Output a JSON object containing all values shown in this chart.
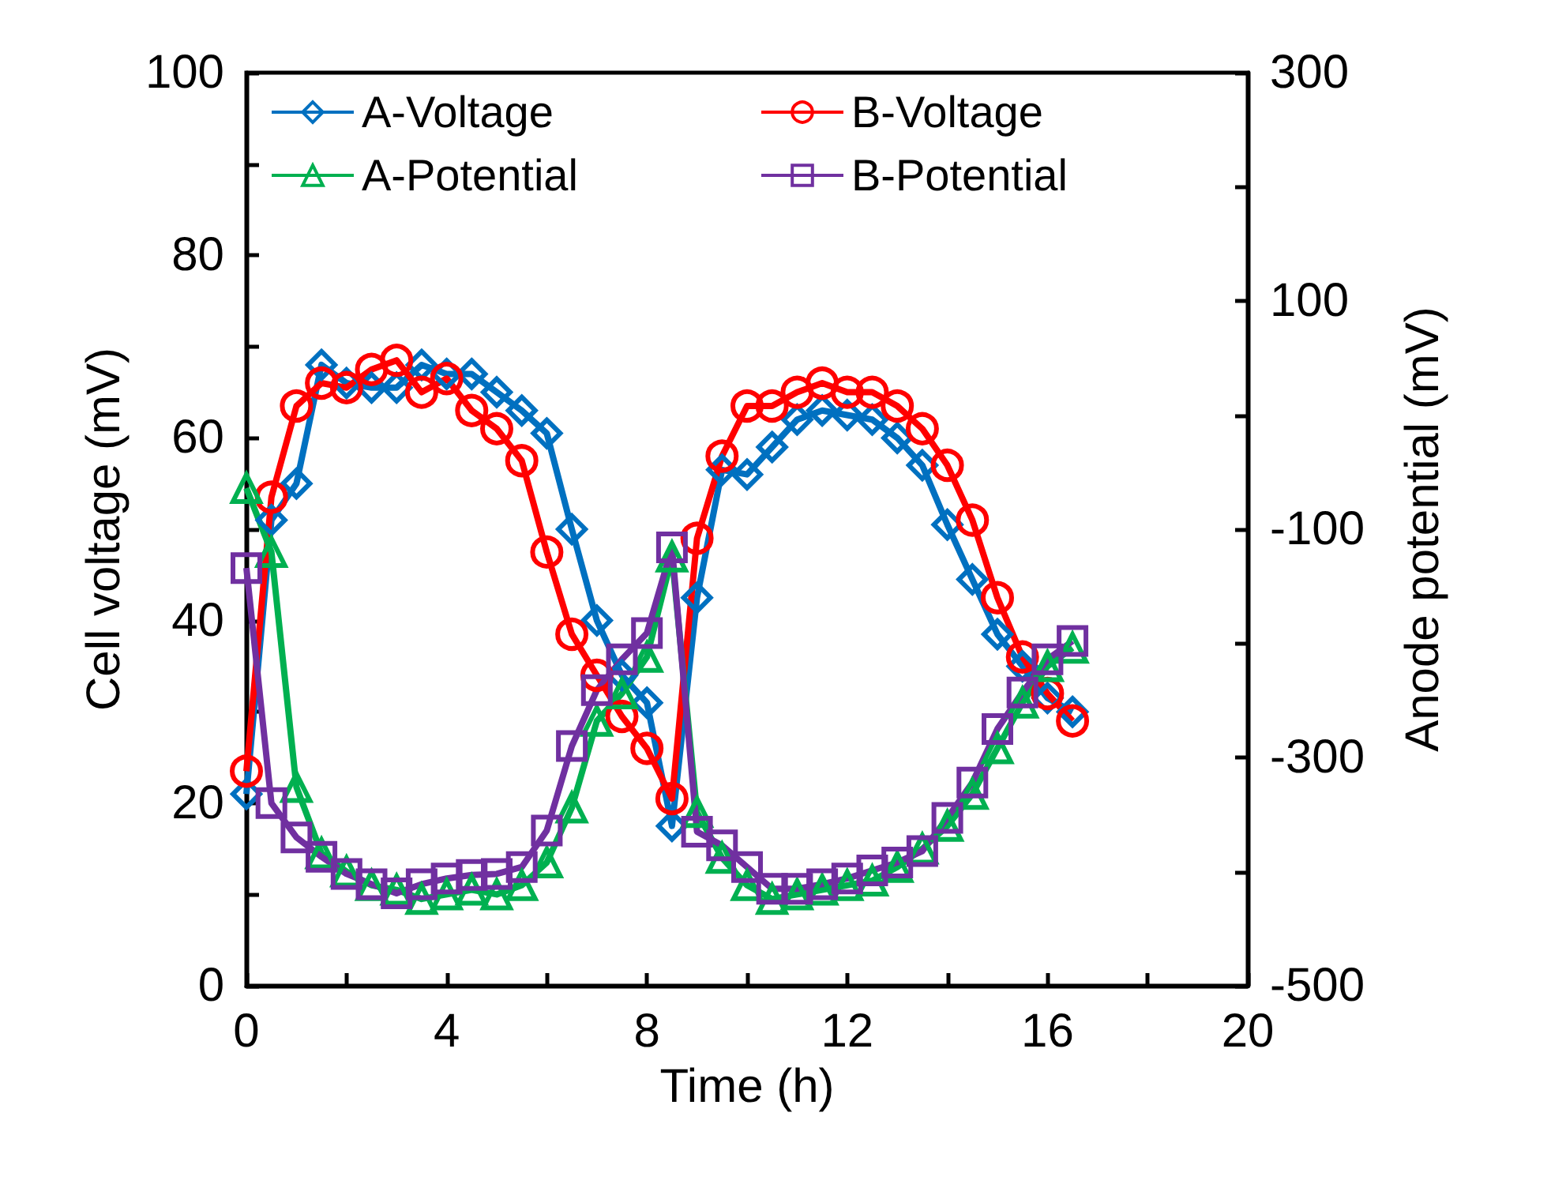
{
  "chart_data": {
    "type": "line",
    "xlabel": "Time (h)",
    "ylabel": "Cell voltage (mV)",
    "y2label": "Anode potential (mV)",
    "x": [
      0,
      0.5,
      1,
      1.5,
      2,
      2.5,
      3,
      3.5,
      4,
      4.5,
      5,
      5.5,
      6,
      6.5,
      7,
      7.5,
      8,
      8.5,
      9,
      9.5,
      10,
      10.5,
      11,
      11.5,
      12,
      12.5,
      13,
      13.5,
      14,
      14.5,
      15,
      15.5,
      16,
      16.5
    ],
    "series": [
      {
        "name": "A-Voltage",
        "color": "#0070c0",
        "marker": "diamond",
        "values": [
          21,
          51,
          55,
          68,
          66,
          65.5,
          65.5,
          68,
          67,
          67,
          65,
          63,
          60.5,
          50,
          40,
          34,
          31,
          17.5,
          42.5,
          56.5,
          56,
          59,
          62,
          63,
          62.5,
          62,
          60,
          57,
          50.5,
          44.5,
          38.5,
          35,
          31.5,
          30
        ]
      },
      {
        "name": "B-Voltage",
        "color": "#ff0000",
        "marker": "circle",
        "values": [
          23.5,
          53.5,
          63.5,
          66,
          65.5,
          67.5,
          68.5,
          65,
          66.5,
          63,
          61,
          57.5,
          47.5,
          38.5,
          34,
          29.5,
          26,
          20.5,
          49,
          58,
          63.5,
          63.5,
          65,
          66,
          65,
          65,
          63.5,
          61,
          57,
          51,
          42.5,
          36,
          32,
          29
        ]
      },
      {
        "name": "A-Potential",
        "color": "#00b050",
        "marker": "triangle",
        "axis": "y2",
        "values": [
          -64,
          -120,
          -326,
          -384,
          -400,
          -412,
          -416,
          -424,
          -420,
          -416,
          -420,
          -412,
          -392,
          -344,
          -268,
          -244,
          -212,
          -124,
          -348,
          -388,
          -412,
          -424,
          -420,
          -416,
          -412,
          -408,
          -396,
          -380,
          -360,
          -332,
          -292,
          -252,
          -220,
          -204
        ]
      },
      {
        "name": "B-Potential",
        "color": "#7030a0",
        "marker": "square",
        "axis": "y2",
        "values": [
          -134,
          -340,
          -370,
          -387,
          -402,
          -411,
          -419,
          -411,
          -406,
          -403,
          -402,
          -396,
          -364,
          -290,
          -241,
          -214,
          -191,
          -116,
          -365,
          -377,
          -396,
          -415,
          -415,
          -411,
          -406,
          -399,
          -392,
          -382,
          -353,
          -322,
          -275,
          -243,
          -214,
          -198
        ]
      }
    ],
    "xlim": [
      0,
      20
    ],
    "xticks": [
      0,
      {
        "value": 2,
        "label": null
      },
      4,
      {
        "value": 6,
        "label": null
      },
      8,
      {
        "value": 10,
        "label": null
      },
      12,
      {
        "value": 14,
        "label": null
      },
      16,
      {
        "value": 18,
        "label": null
      },
      20
    ],
    "ylim": [
      0,
      100
    ],
    "yticks": [
      0,
      {
        "value": 10,
        "label": null
      },
      20,
      {
        "value": 30,
        "label": null
      },
      40,
      {
        "value": 50,
        "label": null
      },
      60,
      {
        "value": 70,
        "label": null
      },
      80,
      {
        "value": 90,
        "label": null
      },
      100
    ],
    "y2lim": [
      -500,
      300
    ],
    "y2ticks": [
      -500,
      {
        "value": -400,
        "label": null
      },
      -300,
      {
        "value": -200,
        "label": null
      },
      -100,
      {
        "value": 0,
        "label": null
      },
      100,
      {
        "value": 200,
        "label": null
      },
      300
    ],
    "legend": "top",
    "grid": false,
    "line_style": "solid"
  }
}
